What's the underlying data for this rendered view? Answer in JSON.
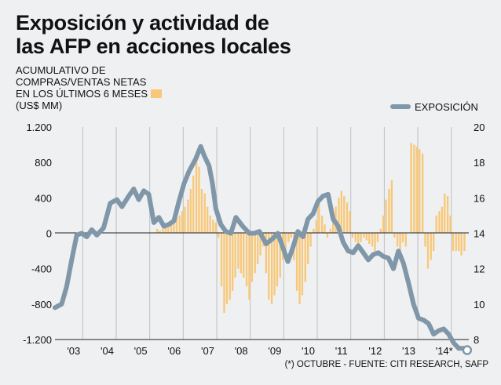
{
  "header": {
    "title_line1": "Exposición y actividad de",
    "title_line2": "las AFP en acciones locales"
  },
  "left_axis_label": {
    "line1": "ACUMULATIVO DE",
    "line2": "COMPRAS/VENTAS NETAS",
    "line3": "EN LOS ÚLTIMOS 6 MESES",
    "line4": "(US$ MM)"
  },
  "legend": {
    "exposure": "EXPOSICIÓN"
  },
  "footnote": "(*) OCTUBRE - FUENTE: CITI RESEARCH, SAFP",
  "colors": {
    "bars": "#f8c878",
    "line": "#7f97a9",
    "background": "#eff0f1",
    "grid": "#bfbfbf"
  },
  "chart_data": {
    "type": "bar+line",
    "x_tick_labels": [
      "'03",
      "'04",
      "'05",
      "'06",
      "'07",
      "'08",
      "'09",
      "'10",
      "'11",
      "'12",
      "'13",
      "'14*"
    ],
    "y_left": {
      "ticks": [
        "1.200",
        "800",
        "400",
        "0",
        "-400",
        "-800",
        "-1.200"
      ],
      "range": [
        -1200,
        1200
      ]
    },
    "y_right": {
      "ticks": [
        "20",
        "18",
        "16",
        "14",
        "12",
        "10",
        "8"
      ],
      "range": [
        8,
        20
      ]
    },
    "grid": "vertical",
    "bar_series": {
      "x": [
        2005.55,
        2005.63,
        2005.72,
        2005.8,
        2005.88,
        2005.97,
        2006.05,
        2006.13,
        2006.22,
        2006.3,
        2006.38,
        2006.47,
        2006.55,
        2006.63,
        2006.72,
        2006.8,
        2006.88,
        2006.97,
        2007.05,
        2007.13,
        2007.22,
        2007.3,
        2007.38,
        2007.47,
        2007.55,
        2007.63,
        2007.72,
        2007.8,
        2007.88,
        2007.97,
        2008.05,
        2008.13,
        2008.22,
        2008.3,
        2008.38,
        2008.47,
        2008.55,
        2008.63,
        2008.72,
        2008.8,
        2008.88,
        2008.97,
        2009.05,
        2009.13,
        2009.22,
        2009.3,
        2009.38,
        2009.47,
        2009.55,
        2009.63,
        2009.72,
        2009.8,
        2009.88,
        2009.97,
        2010.05,
        2010.13,
        2010.22,
        2010.3,
        2010.38,
        2010.47,
        2010.55,
        2010.63,
        2010.72,
        2010.8,
        2010.88,
        2010.97,
        2011.05,
        2011.13,
        2011.22,
        2011.3,
        2011.38,
        2011.47,
        2011.55,
        2011.63,
        2011.72,
        2011.8,
        2011.88,
        2011.97,
        2012.05,
        2012.13,
        2012.22,
        2012.3,
        2012.38,
        2012.47,
        2012.55,
        2012.63,
        2012.72,
        2012.8,
        2012.88,
        2012.97,
        2013.05,
        2013.13,
        2013.22,
        2013.3,
        2013.38,
        2013.47,
        2013.55,
        2013.63,
        2013.72,
        2013.8,
        2013.88,
        2013.97,
        2014.05,
        2014.13,
        2014.22,
        2014.3,
        2014.38,
        2014.47,
        2014.55,
        2014.63,
        2014.72
      ],
      "values": [
        50,
        30,
        50,
        60,
        80,
        100,
        150,
        180,
        200,
        250,
        300,
        380,
        500,
        650,
        850,
        750,
        500,
        450,
        300,
        200,
        150,
        120,
        -50,
        -600,
        -900,
        -800,
        -750,
        -650,
        -500,
        -400,
        -450,
        -500,
        -600,
        -750,
        -550,
        -450,
        -350,
        -250,
        -150,
        -450,
        -750,
        -800,
        -700,
        -600,
        -500,
        -300,
        -200,
        -100,
        -50,
        -300,
        -650,
        -800,
        -700,
        -550,
        -350,
        -150,
        50,
        150,
        350,
        200,
        100,
        -50,
        50,
        200,
        300,
        400,
        480,
        420,
        350,
        250,
        -50,
        -100,
        -150,
        -100,
        -50,
        -80,
        -120,
        -150,
        -200,
        -100,
        50,
        200,
        380,
        500,
        600,
        -50,
        -150,
        -200,
        -100,
        -150,
        0,
        1020,
        1000,
        980,
        950,
        900,
        -150,
        -400,
        -300,
        -200,
        200,
        250,
        300,
        450,
        420,
        200,
        -200,
        -200,
        -200,
        -250,
        -200
      ],
      "bar_width_years": 0.055
    },
    "line_series": {
      "name": "EXPOSICIÓN",
      "axis": "right",
      "x": [
        2002.5,
        2002.7,
        2002.85,
        2003.0,
        2003.15,
        2003.3,
        2003.45,
        2003.6,
        2003.75,
        2003.95,
        2004.15,
        2004.35,
        2004.5,
        2004.7,
        2004.85,
        2005.0,
        2005.15,
        2005.3,
        2005.45,
        2005.6,
        2005.75,
        2005.9,
        2006.05,
        2006.2,
        2006.35,
        2006.5,
        2006.7,
        2006.85,
        2006.95,
        2007.1,
        2007.2,
        2007.3,
        2007.45,
        2007.6,
        2007.75,
        2007.9,
        2008.1,
        2008.3,
        2008.45,
        2008.6,
        2008.8,
        2009.0,
        2009.15,
        2009.3,
        2009.45,
        2009.6,
        2009.75,
        2009.9,
        2010.05,
        2010.2,
        2010.35,
        2010.5,
        2010.65,
        2010.8,
        2010.95,
        2011.1,
        2011.25,
        2011.4,
        2011.55,
        2011.7,
        2011.85,
        2012.0,
        2012.15,
        2012.3,
        2012.45,
        2012.6,
        2012.75,
        2012.9,
        2013.05,
        2013.2,
        2013.35,
        2013.5,
        2013.65,
        2013.8,
        2013.95,
        2014.1,
        2014.25,
        2014.4,
        2014.55,
        2014.7,
        2014.8
      ],
      "values": [
        9.8,
        10.0,
        11.0,
        12.5,
        13.9,
        14.0,
        13.8,
        14.2,
        13.9,
        14.3,
        15.7,
        15.9,
        15.5,
        16.1,
        16.5,
        15.9,
        16.4,
        16.2,
        14.6,
        14.9,
        14.4,
        14.5,
        14.7,
        15.8,
        16.8,
        17.5,
        18.2,
        18.9,
        18.4,
        17.8,
        16.8,
        15.4,
        14.5,
        14.1,
        14.0,
        14.9,
        14.4,
        14.0,
        14.0,
        14.1,
        13.4,
        13.7,
        14.0,
        13.2,
        12.4,
        13.2,
        14.1,
        13.8,
        14.8,
        15.1,
        15.8,
        16.1,
        16.2,
        14.8,
        14.4,
        13.5,
        13.0,
        12.9,
        13.3,
        12.9,
        12.5,
        12.8,
        12.9,
        12.7,
        12.6,
        12.0,
        13.0,
        12.3,
        11.2,
        10.0,
        9.2,
        9.1,
        8.9,
        8.3,
        8.5,
        8.6,
        8.3,
        7.8,
        7.5,
        7.5,
        7.4
      ]
    }
  }
}
